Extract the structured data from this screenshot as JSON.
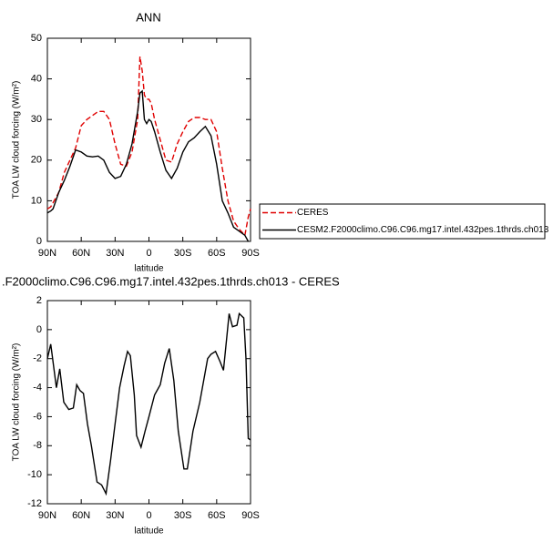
{
  "chart_data": [
    {
      "type": "line",
      "title": "ANN",
      "x_label": "latitude",
      "y_label": "TOA LW cloud forcing (W/m²)",
      "x": [
        90,
        87,
        85,
        80,
        75,
        70,
        65,
        60,
        55,
        50,
        45,
        40,
        35,
        30,
        25,
        20,
        15,
        10,
        8,
        6,
        4,
        2,
        0,
        -2,
        -5,
        -10,
        -15,
        -20,
        -25,
        -30,
        -35,
        -40,
        -45,
        -50,
        -55,
        -60,
        -65,
        -70,
        -75,
        -80,
        -85,
        -88,
        -90
      ],
      "xlim": [
        90,
        -90
      ],
      "xticks": [
        {
          "value": 90,
          "label": "90N"
        },
        {
          "value": 60,
          "label": "60N"
        },
        {
          "value": 30,
          "label": "30N"
        },
        0,
        {
          "value": -30,
          "label": "30S"
        },
        {
          "value": -60,
          "label": "60S"
        },
        {
          "value": -90,
          "label": "90S"
        }
      ],
      "ylim": [
        0,
        50
      ],
      "yticks": [
        0,
        10,
        20,
        30,
        40,
        50
      ],
      "legend": "outside-right",
      "series": [
        {
          "name": "CERES",
          "color": "#e00000",
          "line_style": "dashed",
          "values": [
            8,
            8.5,
            9.5,
            12,
            17,
            20,
            23,
            28.5,
            30,
            31,
            32,
            32,
            30,
            24,
            19,
            18.5,
            22,
            30,
            45.5,
            42,
            36,
            35,
            35,
            34,
            30,
            25,
            20,
            19.5,
            24,
            27,
            29.5,
            30.5,
            30.5,
            30,
            30,
            27,
            18,
            10,
            5,
            3,
            1.5,
            6,
            8
          ]
        },
        {
          "name": "CESM2.F2000climo.C96.C96.mg17.intel.432pes.1thrds.ch013",
          "color": "#000000",
          "line_style": "solid",
          "values": [
            7,
            7.5,
            8,
            12,
            15,
            18.5,
            22.5,
            22,
            21,
            20.8,
            21,
            20,
            17,
            15.5,
            16,
            19,
            24,
            32,
            36.5,
            37,
            30,
            29,
            30,
            29.5,
            27,
            22,
            17.5,
            15.5,
            18,
            22,
            24.5,
            25.5,
            27,
            28.3,
            26,
            19,
            10,
            7,
            3.5,
            2.5,
            1.5,
            0,
            null
          ]
        }
      ]
    },
    {
      "type": "line",
      "title": ".F2000climo.C96.C96.mg17.intel.432pes.1thrds.ch013 - CERES",
      "x_label": "latitude",
      "y_label": "TOA LW cloud forcing (W/m²)",
      "x": [
        90,
        87,
        82,
        79,
        75.5,
        71,
        67,
        64,
        61,
        58,
        54.5,
        51,
        46,
        42,
        38,
        34,
        30,
        26,
        22,
        19,
        16.5,
        13,
        11,
        7,
        3.5,
        0,
        -5,
        -10,
        -14,
        -18,
        -22,
        -26,
        -31,
        -34,
        -39,
        -45,
        -52,
        -55,
        -59,
        -63,
        -66,
        -71,
        -74,
        -78,
        -80,
        -84,
        -86,
        -88,
        -90
      ],
      "xlim": [
        90,
        -90
      ],
      "xticks": [
        {
          "value": 90,
          "label": "90N"
        },
        {
          "value": 60,
          "label": "60N"
        },
        {
          "value": 30,
          "label": "30N"
        },
        0,
        {
          "value": -30,
          "label": "30S"
        },
        {
          "value": -60,
          "label": "60S"
        },
        {
          "value": -90,
          "label": "90S"
        }
      ],
      "ylim": [
        -12,
        2
      ],
      "yticks": [
        -12,
        -10,
        -8,
        -6,
        -4,
        -2,
        0,
        2
      ],
      "series": [
        {
          "color": "#000000",
          "line_style": "solid",
          "values": [
            -2,
            -1,
            -4,
            -2.7,
            -5,
            -5.5,
            -5.4,
            -3.8,
            -4.2,
            -4.4,
            -6.5,
            -8,
            -10.5,
            -10.7,
            -11.3,
            -9,
            -6.5,
            -4,
            -2.5,
            -1.5,
            -1.8,
            -4.5,
            -7.3,
            -8.1,
            -7,
            -6,
            -4.5,
            -3.8,
            -2.3,
            -1.3,
            -3.5,
            -7,
            -9.6,
            -9.6,
            -7,
            -5,
            -2,
            -1.7,
            -1.5,
            -2.2,
            -2.8,
            1.1,
            0.2,
            0.3,
            1.1,
            0.8,
            -2,
            -7.5,
            -7.6
          ]
        }
      ]
    }
  ]
}
